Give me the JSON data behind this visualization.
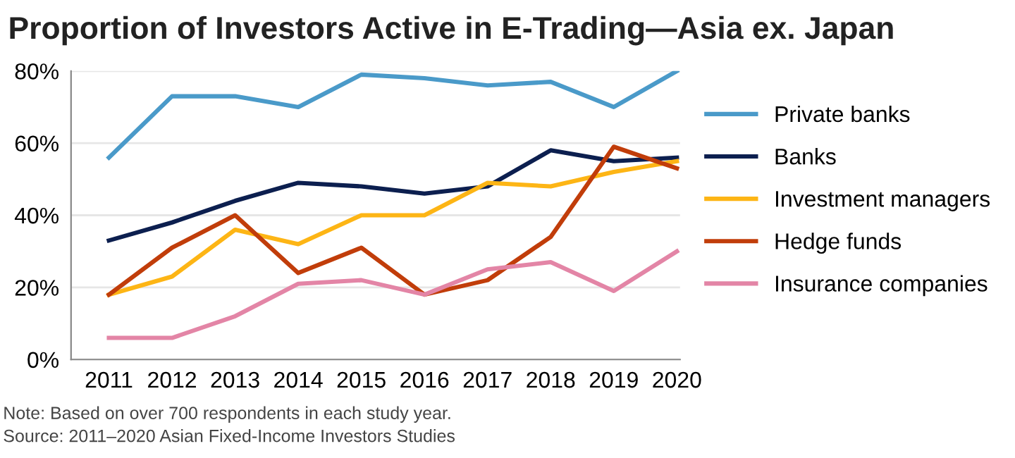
{
  "chart_data": {
    "type": "line",
    "title": "Proportion of Investors Active in E-Trading—Asia ex. Japan",
    "categories": [
      "2011",
      "2012",
      "2013",
      "2014",
      "2015",
      "2016",
      "2017",
      "2018",
      "2019",
      "2020"
    ],
    "series": [
      {
        "name": "Private banks",
        "color": "#4a9ac9",
        "values": [
          56,
          73,
          73,
          70,
          79,
          78,
          76,
          77,
          70,
          80
        ]
      },
      {
        "name": "Banks",
        "color": "#0c1f4f",
        "values": [
          33,
          38,
          44,
          49,
          48,
          46,
          48,
          58,
          55,
          56
        ]
      },
      {
        "name": "Investment managers",
        "color": "#fdb515",
        "values": [
          18,
          23,
          36,
          32,
          40,
          40,
          49,
          48,
          52,
          55
        ]
      },
      {
        "name": "Hedge funds",
        "color": "#c13d0a",
        "values": [
          18,
          31,
          40,
          24,
          31,
          18,
          22,
          34,
          59,
          53
        ]
      },
      {
        "name": "Insurance companies",
        "color": "#e385a6",
        "values": [
          6,
          6,
          12,
          21,
          22,
          18,
          25,
          27,
          19,
          30
        ]
      }
    ],
    "ylim": [
      0,
      80
    ],
    "yticks": [
      {
        "value": 0,
        "label": "0%"
      },
      {
        "value": 20,
        "label": "20%"
      },
      {
        "value": 40,
        "label": "40%"
      },
      {
        "value": 60,
        "label": "60%"
      },
      {
        "value": 80,
        "label": "80%"
      }
    ],
    "grid": "y",
    "legend": "right",
    "marker": "none",
    "line_style": "solid",
    "annotations": [
      "Note: Based on over 700 respondents in each study year.",
      "Source: 2011–2020 Asian Fixed-Income Investors Studies"
    ]
  }
}
